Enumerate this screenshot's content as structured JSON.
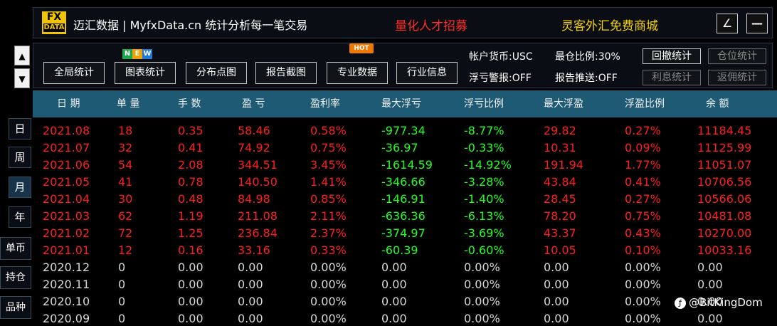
{
  "header": {
    "logo_top": "FX",
    "logo_bottom": "DATA",
    "title": "迈汇数据 | MyfxData.cn  统计分析每一笔交易",
    "recruit": "量化人才招募",
    "store": "灵客外汇免费商城",
    "restore_glyph": "∠",
    "minimize_glyph": "—"
  },
  "nav": {
    "up": "▲",
    "down": "▼"
  },
  "periods": [
    "日",
    "周",
    "月",
    "年"
  ],
  "active_period": "月",
  "modes": [
    "单币",
    "持仓",
    "品种"
  ],
  "toolbar": {
    "buttons": [
      "全局统计",
      "图表统计",
      "分布点图",
      "报告截图",
      "专业数据",
      "行业信息"
    ],
    "badge_new": [
      "N",
      "E",
      "W"
    ],
    "badge_new_colors": [
      "#1aa84a",
      "#f0a000",
      "#1e7ad6"
    ],
    "badge_hot": "HOT",
    "account_currency": "帐户货币:USC",
    "position_ratio": "最仓比例:30%",
    "float_alert": "浮亏警报:OFF",
    "report_push": "报告推送:OFF",
    "side_buttons": [
      "回撤统计",
      "仓位统计",
      "利息统计",
      "返佣统计"
    ]
  },
  "table": {
    "headers": [
      "日 期",
      "单 量",
      "手 数",
      "盈 亏",
      "盈利率",
      "最大浮亏",
      "浮亏比例",
      "最大浮盈",
      "浮盈比例",
      "余 额"
    ],
    "rows": [
      [
        "2021.08",
        "18",
        "0.35",
        "58.46",
        "0.58%",
        "-977.34",
        "-8.77%",
        "29.82",
        "0.27%",
        "11184.45"
      ],
      [
        "2021.07",
        "32",
        "0.41",
        "74.92",
        "0.75%",
        "-36.97",
        "-0.33%",
        "10.31",
        "0.09%",
        "11125.99"
      ],
      [
        "2021.06",
        "54",
        "2.08",
        "344.51",
        "3.45%",
        "-1614.59",
        "-14.92%",
        "191.94",
        "1.77%",
        "11051.07"
      ],
      [
        "2021.05",
        "41",
        "0.78",
        "140.50",
        "1.41%",
        "-346.66",
        "-3.28%",
        "43.84",
        "0.41%",
        "10706.56"
      ],
      [
        "2021.04",
        "30",
        "0.48",
        "84.98",
        "0.85%",
        "-146.91",
        "-1.40%",
        "28.45",
        "0.27%",
        "10566.06"
      ],
      [
        "2021.03",
        "62",
        "1.19",
        "211.08",
        "2.11%",
        "-636.36",
        "-6.13%",
        "78.20",
        "0.75%",
        "10481.08"
      ],
      [
        "2021.02",
        "72",
        "1.25",
        "236.84",
        "2.37%",
        "-374.97",
        "-3.69%",
        "43.37",
        "0.43%",
        "10270.00"
      ],
      [
        "2021.01",
        "12",
        "0.16",
        "33.16",
        "0.33%",
        "-60.39",
        "-0.60%",
        "10.05",
        "0.10%",
        "10033.16"
      ],
      [
        "2020.12",
        "0",
        "0.00",
        "0.00",
        "0.00%",
        "0.00",
        "0.00%",
        "0.00",
        "0.00%",
        "0.00"
      ],
      [
        "2020.11",
        "0",
        "0.00",
        "0.00",
        "0.00%",
        "0.00",
        "0.00%",
        "0.00",
        "0.00%",
        "0.00"
      ],
      [
        "2020.10",
        "0",
        "0.00",
        "0.00",
        "0.00%",
        "0.00",
        "0.00%",
        "0.00",
        "0.00%",
        "0.00"
      ],
      [
        "2020.09",
        "0",
        "0.00",
        "0.00",
        "0.00%",
        "0.00",
        "0.00%",
        "0.00",
        "0.00%",
        "0.00"
      ]
    ]
  },
  "colors": {
    "positive": "#ff1e1e",
    "negative": "#22ff22",
    "neutral": "#d8d8d8",
    "header_bg": "#1e5a74"
  },
  "watermark": {
    "icon": "ƒ",
    "text": "@BitKingDom"
  }
}
